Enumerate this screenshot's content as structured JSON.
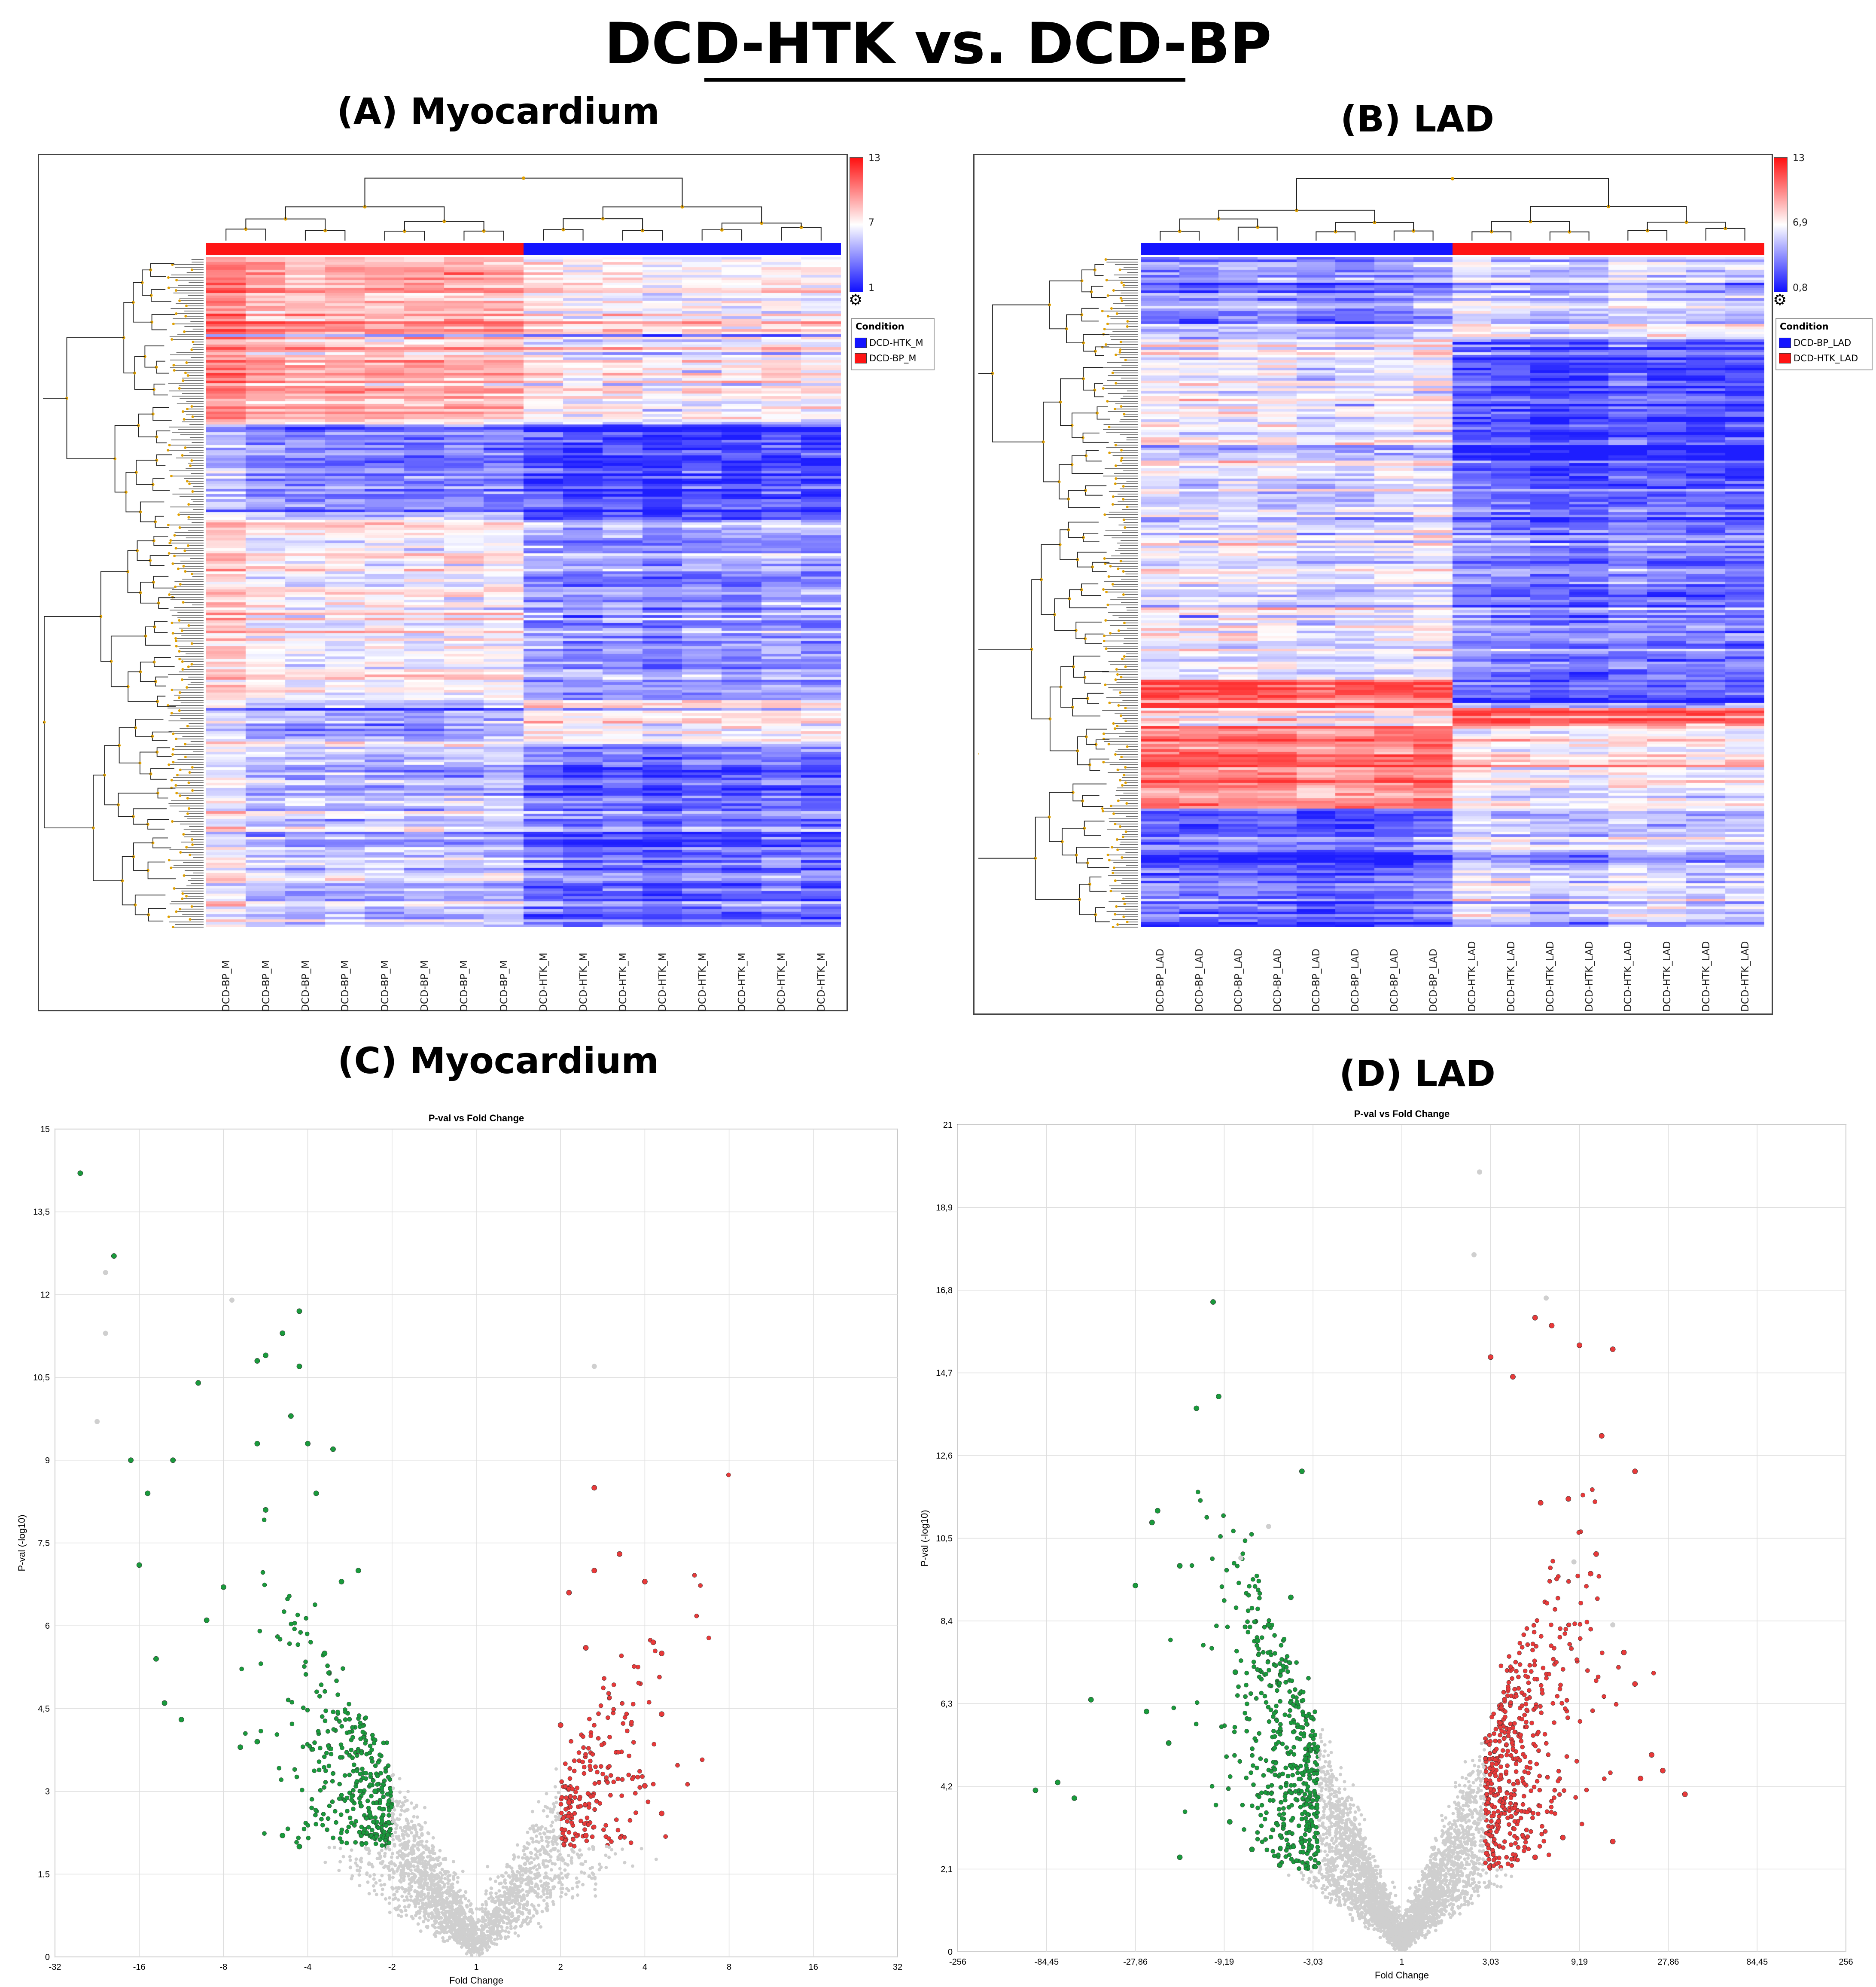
{
  "figure": {
    "main_title": "DCD-HTK vs. DCD-BP",
    "panel_a_title": "(A) Myocardium",
    "panel_b_title": "(B) LAD",
    "panel_c_title": "(C) Myocardium",
    "panel_d_title": "(D) LAD"
  },
  "heatmap_a": {
    "columns": [
      "DCD-BP_M",
      "DCD-BP_M",
      "DCD-BP_M",
      "DCD-BP_M",
      "DCD-BP_M",
      "DCD-BP_M",
      "DCD-BP_M",
      "DCD-BP_M",
      "DCD-HTK_M",
      "DCD-HTK_M",
      "DCD-HTK_M",
      "DCD-HTK_M",
      "DCD-HTK_M",
      "DCD-HTK_M",
      "DCD-HTK_M",
      "DCD-HTK_M"
    ],
    "scale": {
      "max": "13",
      "mid": "7",
      "min": "1"
    },
    "legend": {
      "title": "Condition",
      "items": [
        {
          "label": "DCD-HTK_M",
          "color": "#1414ff"
        },
        {
          "label": "DCD-BP_M",
          "color": "#ff1414"
        }
      ]
    }
  },
  "heatmap_b": {
    "columns": [
      "DCD-BP_LAD",
      "DCD-BP_LAD",
      "DCD-BP_LAD",
      "DCD-BP_LAD",
      "DCD-BP_LAD",
      "DCD-BP_LAD",
      "DCD-BP_LAD",
      "DCD-BP_LAD",
      "DCD-HTK_LAD",
      "DCD-HTK_LAD",
      "DCD-HTK_LAD",
      "DCD-HTK_LAD",
      "DCD-HTK_LAD",
      "DCD-HTK_LAD",
      "DCD-HTK_LAD",
      "DCD-HTK_LAD"
    ],
    "scale": {
      "max": "13",
      "mid": "6,9",
      "min": "0,8"
    },
    "legend": {
      "title": "Condition",
      "items": [
        {
          "label": "DCD-BP_LAD",
          "color": "#1414ff"
        },
        {
          "label": "DCD-HTK_LAD",
          "color": "#ff1414"
        }
      ]
    }
  },
  "colors": {
    "high": "#ff1e1e",
    "mid": "#ffffff",
    "low": "#1e1eff",
    "up": "#e83a3a",
    "down": "#1a9a3c",
    "ns": "#cfcfcf",
    "dendro": "#222222",
    "node": "#e0a000"
  },
  "chart_data": [
    {
      "type": "scatter",
      "title": "P-val vs Fold Change",
      "xlabel": "Fold Change",
      "ylabel": "P-val (-log10)",
      "xticks": [
        "-32",
        "-16",
        "-8",
        "-4",
        "-2",
        "1",
        "2",
        "4",
        "8",
        "16",
        "32"
      ],
      "yticks": [
        "0",
        "1,5",
        "3",
        "4,5",
        "6",
        "7,5",
        "9",
        "10,5",
        "12",
        "13,5",
        "15"
      ],
      "ylim": [
        0,
        15
      ],
      "xlim_log2": [
        -5,
        5
      ],
      "series": [
        {
          "name": "down",
          "color": "#1a9a3c",
          "points": [
            [
              -4.7,
              14.2
            ],
            [
              -4.3,
              12.7
            ],
            [
              -2.1,
              11.7
            ],
            [
              -2.3,
              11.3
            ],
            [
              -2.5,
              10.9
            ],
            [
              -2.6,
              10.8
            ],
            [
              -2.1,
              10.7
            ],
            [
              -3.3,
              10.4
            ],
            [
              -2.2,
              9.8
            ],
            [
              -2.6,
              9.3
            ],
            [
              -2.0,
              9.3
            ],
            [
              -1.7,
              9.2
            ],
            [
              -4.1,
              9.0
            ],
            [
              -3.6,
              9.0
            ],
            [
              -3.9,
              8.4
            ],
            [
              -1.9,
              8.4
            ],
            [
              -2.5,
              8.1
            ],
            [
              -4.0,
              7.1
            ],
            [
              -3.0,
              6.7
            ],
            [
              -3.2,
              6.1
            ],
            [
              -3.8,
              5.4
            ],
            [
              -3.7,
              4.6
            ],
            [
              -3.5,
              4.3
            ],
            [
              -2.8,
              3.8
            ],
            [
              -2.6,
              3.9
            ],
            [
              -2.3,
              2.2
            ],
            [
              -2.1,
              2.0
            ],
            [
              -1.8,
              5.5
            ],
            [
              -1.6,
              6.8
            ],
            [
              -1.4,
              7.0
            ],
            [
              -1.2,
              3.0
            ]
          ]
        },
        {
          "name": "up",
          "color": "#e83a3a",
          "points": [
            [
              1.4,
              8.5
            ],
            [
              1.7,
              7.3
            ],
            [
              1.4,
              7.0
            ],
            [
              2.0,
              6.8
            ],
            [
              1.1,
              6.6
            ],
            [
              2.1,
              5.7
            ],
            [
              2.2,
              5.5
            ],
            [
              1.3,
              5.6
            ],
            [
              2.2,
              4.4
            ],
            [
              1.0,
              4.2
            ],
            [
              2.0,
              3.1
            ],
            [
              2.2,
              2.6
            ],
            [
              1.1,
              2.8
            ],
            [
              1.3,
              2.2
            ]
          ]
        },
        {
          "name": "ns",
          "color": "#cfcfcf",
          "points": [
            [
              -4.4,
              12.4
            ],
            [
              -4.4,
              11.3
            ],
            [
              -4.5,
              9.7
            ],
            [
              -2.9,
              11.9
            ],
            [
              1.4,
              10.7
            ]
          ]
        }
      ]
    },
    {
      "type": "scatter",
      "title": "P-val vs Fold Change",
      "xlabel": "Fold Change",
      "ylabel": "P-val (-log10)",
      "xticks": [
        "-256",
        "-84,45",
        "-27,86",
        "-9,19",
        "-3,03",
        "1",
        "3,03",
        "9,19",
        "27,86",
        "84,45",
        "256"
      ],
      "yticks": [
        "0",
        "2,1",
        "4,2",
        "6,3",
        "8,4",
        "10,5",
        "12,6",
        "14,7",
        "16,8",
        "18,9",
        "21"
      ],
      "ylim": [
        0,
        21
      ],
      "xlim_log2": [
        -8,
        8
      ],
      "series": [
        {
          "name": "down",
          "color": "#1a9a3c",
          "points": [
            [
              -3.4,
              16.5
            ],
            [
              -3.3,
              14.1
            ],
            [
              -3.7,
              13.8
            ],
            [
              -1.8,
              12.2
            ],
            [
              -4.4,
              11.2
            ],
            [
              -4.5,
              10.9
            ],
            [
              -4.0,
              9.8
            ],
            [
              -4.8,
              9.3
            ],
            [
              -5.6,
              6.4
            ],
            [
              -4.6,
              6.1
            ],
            [
              -4.2,
              5.3
            ],
            [
              -6.2,
              4.3
            ],
            [
              -6.6,
              4.1
            ],
            [
              -5.9,
              3.9
            ],
            [
              -3.0,
              7.1
            ],
            [
              -2.6,
              7.9
            ],
            [
              -2.4,
              8.3
            ],
            [
              -2.0,
              9.0
            ],
            [
              -4.0,
              2.4
            ],
            [
              -3.1,
              3.3
            ],
            [
              -2.7,
              2.6
            ],
            [
              -2.2,
              2.2
            ]
          ]
        },
        {
          "name": "up",
          "color": "#e83a3a",
          "points": [
            [
              2.4,
              16.1
            ],
            [
              2.7,
              15.9
            ],
            [
              3.2,
              15.4
            ],
            [
              3.8,
              15.3
            ],
            [
              1.6,
              15.1
            ],
            [
              2.0,
              14.6
            ],
            [
              3.6,
              13.1
            ],
            [
              4.2,
              12.2
            ],
            [
              3.0,
              11.5
            ],
            [
              2.5,
              11.4
            ],
            [
              3.5,
              10.1
            ],
            [
              3.4,
              9.6
            ],
            [
              4.0,
              7.6
            ],
            [
              4.2,
              6.8
            ],
            [
              4.5,
              5.0
            ],
            [
              4.7,
              4.6
            ],
            [
              5.1,
              4.0
            ],
            [
              4.3,
              4.4
            ],
            [
              3.8,
              2.8
            ],
            [
              2.9,
              2.9
            ],
            [
              2.4,
              2.4
            ]
          ]
        },
        {
          "name": "ns",
          "color": "#cfcfcf",
          "points": [
            [
              1.4,
              19.8
            ],
            [
              1.3,
              17.7
            ],
            [
              2.6,
              16.6
            ],
            [
              -2.9,
              10.0
            ],
            [
              -2.4,
              10.8
            ],
            [
              3.1,
              9.9
            ],
            [
              3.8,
              8.3
            ]
          ]
        }
      ]
    }
  ]
}
